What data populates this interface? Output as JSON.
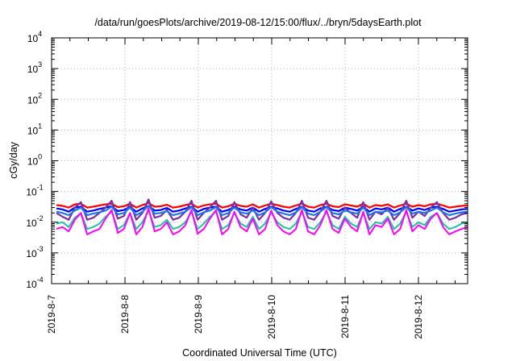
{
  "chart_data": {
    "type": "line",
    "title": "/data/run/goesPlots/archive/2019-08-12/15:00/flux/../bryn/5daysEarth.plot",
    "xlabel": "Coordinated Universal Time (UTC)",
    "ylabel": "cGy/day",
    "yscale": "log",
    "ylim": [
      0.0001,
      10000
    ],
    "xlim": [
      "2019-8-7",
      "2019-8-12 16:00"
    ],
    "grid": true,
    "x_tick_labels": [
      "2019-8-7",
      "2019-8-8",
      "2019-8-9",
      "2019-8-10",
      "2019-8-11",
      "2019-8-12"
    ],
    "y_ticks": [
      {
        "base": "10",
        "exp": "-4"
      },
      {
        "base": "10",
        "exp": "-3"
      },
      {
        "base": "10",
        "exp": "-2"
      },
      {
        "base": "10",
        "exp": "-1"
      },
      {
        "base": "10",
        "exp": "0"
      },
      {
        "base": "10",
        "exp": "1"
      },
      {
        "base": "10",
        "exp": "2"
      },
      {
        "base": "10",
        "exp": "3"
      },
      {
        "base": "10",
        "exp": "4"
      }
    ],
    "series": [
      {
        "color": "#ff0000",
        "values": [
          0.036,
          0.034,
          0.03,
          0.038,
          0.04,
          0.03,
          0.032,
          0.035,
          0.038,
          0.04,
          0.031,
          0.033,
          0.04,
          0.03,
          0.036,
          0.042,
          0.032,
          0.033,
          0.037,
          0.03,
          0.032,
          0.036,
          0.04,
          0.03,
          0.035,
          0.038,
          0.04,
          0.03,
          0.033,
          0.04,
          0.034,
          0.032,
          0.038,
          0.03,
          0.035,
          0.04,
          0.036,
          0.032,
          0.03,
          0.035,
          0.04,
          0.032,
          0.03,
          0.036,
          0.04,
          0.033,
          0.031,
          0.038,
          0.035,
          0.032,
          0.04,
          0.03,
          0.036,
          0.034,
          0.038,
          0.03,
          0.035,
          0.04,
          0.032,
          0.036,
          0.033,
          0.038,
          0.04,
          0.035,
          0.03,
          0.032,
          0.034,
          0.035
        ]
      },
      {
        "color": "#0000ff",
        "values": [
          0.028,
          0.026,
          0.022,
          0.03,
          0.032,
          0.022,
          0.024,
          0.027,
          0.03,
          0.033,
          0.023,
          0.025,
          0.032,
          0.022,
          0.028,
          0.034,
          0.024,
          0.025,
          0.029,
          0.022,
          0.024,
          0.028,
          0.032,
          0.022,
          0.027,
          0.03,
          0.032,
          0.022,
          0.025,
          0.032,
          0.026,
          0.024,
          0.03,
          0.022,
          0.027,
          0.032,
          0.028,
          0.024,
          0.022,
          0.027,
          0.032,
          0.024,
          0.022,
          0.028,
          0.032,
          0.025,
          0.023,
          0.03,
          0.027,
          0.024,
          0.032,
          0.022,
          0.028,
          0.026,
          0.03,
          0.022,
          0.027,
          0.032,
          0.024,
          0.028,
          0.025,
          0.03,
          0.032,
          0.027,
          0.022,
          0.024,
          0.026,
          0.027
        ]
      },
      {
        "color": "#7b2fa8",
        "values": [
          0.02,
          0.015,
          0.012,
          0.03,
          0.045,
          0.012,
          0.014,
          0.02,
          0.03,
          0.05,
          0.013,
          0.016,
          0.045,
          0.012,
          0.02,
          0.055,
          0.014,
          0.016,
          0.025,
          0.012,
          0.014,
          0.022,
          0.05,
          0.012,
          0.02,
          0.03,
          0.05,
          0.012,
          0.016,
          0.045,
          0.018,
          0.014,
          0.03,
          0.012,
          0.02,
          0.048,
          0.02,
          0.014,
          0.012,
          0.02,
          0.05,
          0.014,
          0.012,
          0.022,
          0.05,
          0.016,
          0.013,
          0.03,
          0.02,
          0.014,
          0.045,
          0.012,
          0.022,
          0.018,
          0.03,
          0.012,
          0.02,
          0.05,
          0.014,
          0.022,
          0.016,
          0.03,
          0.045,
          0.02,
          0.012,
          0.014,
          0.018,
          0.02
        ]
      },
      {
        "color": "#1e78e6",
        "values": [
          0.022,
          0.02,
          0.017,
          0.024,
          0.03,
          0.017,
          0.019,
          0.021,
          0.024,
          0.032,
          0.018,
          0.02,
          0.03,
          0.017,
          0.022,
          0.034,
          0.019,
          0.02,
          0.023,
          0.017,
          0.019,
          0.022,
          0.031,
          0.017,
          0.021,
          0.024,
          0.031,
          0.017,
          0.02,
          0.03,
          0.021,
          0.019,
          0.024,
          0.017,
          0.021,
          0.031,
          0.022,
          0.019,
          0.017,
          0.021,
          0.031,
          0.019,
          0.017,
          0.022,
          0.031,
          0.02,
          0.018,
          0.024,
          0.021,
          0.019,
          0.03,
          0.017,
          0.022,
          0.021,
          0.024,
          0.017,
          0.021,
          0.031,
          0.019,
          0.022,
          0.02,
          0.024,
          0.03,
          0.021,
          0.017,
          0.019,
          0.021,
          0.022
        ]
      },
      {
        "color": "#20c0a0",
        "values": [
          0.009,
          0.01,
          0.007,
          0.014,
          0.02,
          0.006,
          0.007,
          0.009,
          0.015,
          0.022,
          0.006,
          0.008,
          0.02,
          0.006,
          0.01,
          0.024,
          0.007,
          0.008,
          0.012,
          0.006,
          0.007,
          0.01,
          0.022,
          0.006,
          0.009,
          0.015,
          0.022,
          0.006,
          0.008,
          0.02,
          0.009,
          0.007,
          0.015,
          0.006,
          0.009,
          0.021,
          0.01,
          0.007,
          0.006,
          0.009,
          0.022,
          0.007,
          0.006,
          0.01,
          0.022,
          0.008,
          0.006,
          0.015,
          0.009,
          0.007,
          0.02,
          0.006,
          0.01,
          0.009,
          0.015,
          0.006,
          0.009,
          0.022,
          0.007,
          0.01,
          0.008,
          0.015,
          0.02,
          0.009,
          0.006,
          0.007,
          0.009,
          0.01
        ]
      },
      {
        "color": "#ff00ff",
        "values": [
          0.006,
          0.007,
          0.005,
          0.012,
          0.02,
          0.004,
          0.005,
          0.006,
          0.013,
          0.025,
          0.0045,
          0.006,
          0.02,
          0.004,
          0.007,
          0.028,
          0.005,
          0.006,
          0.01,
          0.004,
          0.005,
          0.008,
          0.025,
          0.0042,
          0.006,
          0.013,
          0.025,
          0.004,
          0.006,
          0.022,
          0.007,
          0.005,
          0.013,
          0.004,
          0.006,
          0.024,
          0.008,
          0.005,
          0.004,
          0.006,
          0.025,
          0.005,
          0.004,
          0.008,
          0.025,
          0.006,
          0.0045,
          0.013,
          0.007,
          0.005,
          0.022,
          0.004,
          0.008,
          0.007,
          0.013,
          0.004,
          0.006,
          0.025,
          0.005,
          0.008,
          0.006,
          0.013,
          0.02,
          0.007,
          0.004,
          0.005,
          0.006,
          0.007
        ]
      }
    ]
  }
}
